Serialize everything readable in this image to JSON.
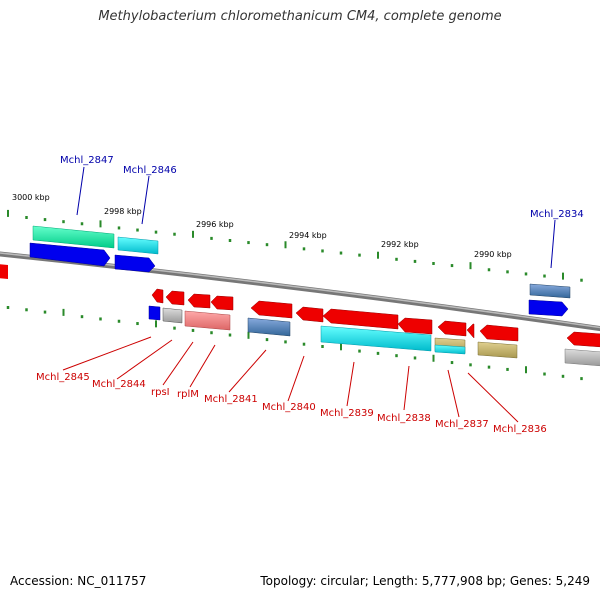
{
  "title": "Methylobacterium chloromethanicum CM4, complete genome",
  "footer": {
    "accession": "Accession: NC_011757",
    "stats": "Topology: circular; Length: 5,777,908 bp; Genes: 5,249"
  },
  "scale_labels": [
    "3000 kbp",
    "2998 kbp",
    "2996 kbp",
    "2994 kbp",
    "2992 kbp",
    "2990 kbp"
  ],
  "upper_gene_labels": [
    "Mchl_2847",
    "Mchl_2846",
    "Mchl_2834"
  ],
  "lower_gene_labels": [
    "Mchl_2845",
    "Mchl_2844",
    "rpsI",
    "rplM",
    "Mchl_2841",
    "Mchl_2840",
    "Mchl_2839",
    "Mchl_2838",
    "Mchl_2837",
    "Mchl_2836"
  ],
  "colors": {
    "backbone": "#808080",
    "forward_strand": "#0000ee",
    "reverse_strand": "#ee0000",
    "tick": "#2a8a2a",
    "upper_label": "#0000aa",
    "lower_label": "#cc0000"
  }
}
